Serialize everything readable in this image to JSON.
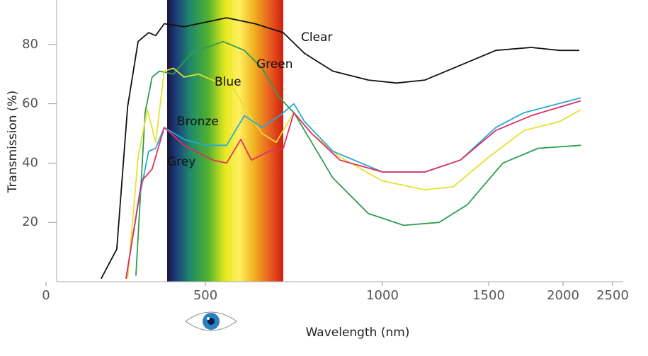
{
  "chart_data": {
    "type": "line",
    "x_label": "Wavelength (nm)",
    "y_label": "Transmission (%)",
    "xlim": [
      0,
      2500
    ],
    "xticks": [
      0,
      500,
      1000,
      1500,
      2000,
      2500
    ],
    "ylim": [
      0,
      95
    ],
    "yticks": [
      20,
      40,
      60,
      80
    ],
    "visible_band": [
      380,
      720
    ],
    "series": [
      {
        "name": "Clear",
        "color": "#111111",
        "x": [
          173,
          222,
          256,
          289,
          322,
          344,
          371,
          433,
          560,
          640,
          720,
          780,
          860,
          960,
          1067,
          1200,
          1367,
          1548,
          1786,
          1976,
          2164
        ],
        "values": [
          1,
          11,
          59,
          81,
          84,
          83,
          87,
          86,
          89,
          87,
          84,
          77,
          71,
          68,
          67,
          68,
          73,
          78,
          79,
          78,
          78
        ]
      },
      {
        "name": "Green",
        "color": "#2e9e4f",
        "x": [
          282,
          311,
          333,
          356,
          400,
          455,
          550,
          610,
          660,
          710,
          750,
          800,
          860,
          960,
          1100,
          1267,
          1400,
          1595,
          1833,
          2180
        ],
        "values": [
          2,
          57,
          69,
          71,
          70,
          77,
          81,
          78,
          72,
          62,
          57,
          47,
          35,
          23,
          19,
          20,
          26,
          40,
          45,
          46
        ]
      },
      {
        "name": "Blue",
        "color": "#e8e030",
        "x": [
          256,
          289,
          318,
          344,
          371,
          400,
          433,
          478,
          520,
          580,
          620,
          660,
          700,
          750,
          800,
          880,
          1000,
          1200,
          1333,
          1500,
          1738,
          1976,
          2180
        ],
        "values": [
          1,
          42,
          58,
          47,
          71,
          72,
          69,
          70,
          68,
          65,
          57,
          50,
          47,
          57,
          50,
          42,
          34,
          31,
          32,
          42,
          51,
          54,
          58
        ]
      },
      {
        "name": "Bronze",
        "color": "#2aa8d8",
        "x": [
          251,
          289,
          322,
          344,
          371,
          433,
          500,
          560,
          610,
          660,
          710,
          750,
          780,
          860,
          1000,
          1200,
          1367,
          1548,
          1738,
          2180
        ],
        "values": [
          1,
          26,
          44,
          45,
          52,
          48,
          46,
          46,
          56,
          52,
          56,
          60,
          54,
          44,
          37,
          37,
          41,
          52,
          57,
          62
        ]
      },
      {
        "name": "Grey",
        "color": "#e03060",
        "x": [
          251,
          300,
          333,
          371,
          433,
          522,
          560,
          600,
          630,
          680,
          720,
          750,
          800,
          880,
          1000,
          1200,
          1367,
          1548,
          1786,
          2180
        ],
        "values": [
          1,
          34,
          38,
          52,
          46,
          41,
          40,
          48,
          41,
          44,
          45,
          57,
          50,
          41,
          37,
          37,
          41,
          51,
          56,
          61
        ]
      }
    ]
  }
}
